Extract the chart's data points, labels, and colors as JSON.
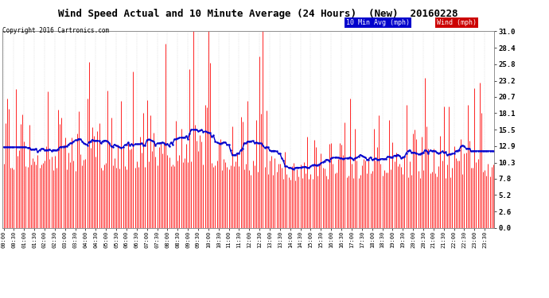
{
  "title": "Wind Speed Actual and 10 Minute Average (24 Hours)  (New)  20160228",
  "copyright": "Copyright 2016 Cartronics.com",
  "legend_10min": "10 Min Avg (mph)",
  "legend_wind": "Wind (mph)",
  "yticks": [
    0.0,
    2.6,
    5.2,
    7.8,
    10.3,
    12.9,
    15.5,
    18.1,
    20.7,
    23.2,
    25.8,
    28.4,
    31.0
  ],
  "ymin": 0.0,
  "ymax": 31.0,
  "n_points": 288,
  "wind_color": "#ff0000",
  "avg_color": "#0000cc",
  "avg_marker_color": "#0000cc",
  "background_color": "#ffffff",
  "plot_bg_color": "#ffffff",
  "grid_color": "#aaaaaa",
  "fig_bg_color": "#ffffff",
  "title_color": "#000000",
  "copyright_color": "#000000",
  "legend_10min_bg": "#0000cc",
  "legend_wind_bg": "#cc0000",
  "seed": 42,
  "wind_base": 8.5,
  "wind_noise": 3.5,
  "avg_smooth": 24,
  "x_tick_every": 6
}
